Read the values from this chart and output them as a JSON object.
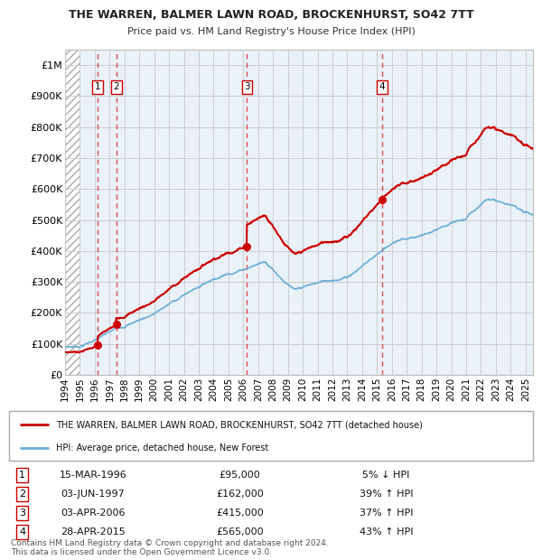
{
  "title1": "THE WARREN, BALMER LAWN ROAD, BROCKENHURST, SO42 7TT",
  "title2": "Price paid vs. HM Land Registry's House Price Index (HPI)",
  "yticks": [
    0,
    100000,
    200000,
    300000,
    400000,
    500000,
    600000,
    700000,
    800000,
    900000,
    1000000
  ],
  "ytick_labels": [
    "£0",
    "£100K",
    "£200K",
    "£300K",
    "£400K",
    "£500K",
    "£600K",
    "£700K",
    "£800K",
    "£900K",
    "£1M"
  ],
  "xlim_start": 1994.0,
  "xlim_end": 2025.5,
  "ylim": [
    0,
    1050000
  ],
  "sale_dates": [
    1996.2,
    1997.45,
    2006.25,
    2015.32
  ],
  "sale_prices": [
    95000,
    162000,
    415000,
    565000
  ],
  "sale_labels": [
    "1",
    "2",
    "3",
    "4"
  ],
  "sale_info": [
    {
      "num": "1",
      "date": "15-MAR-1996",
      "price": "£95,000",
      "pct": "5% ↓ HPI"
    },
    {
      "num": "2",
      "date": "03-JUN-1997",
      "price": "£162,000",
      "pct": "39% ↑ HPI"
    },
    {
      "num": "3",
      "date": "03-APR-2006",
      "price": "£415,000",
      "pct": "37% ↑ HPI"
    },
    {
      "num": "4",
      "date": "28-APR-2015",
      "price": "£565,000",
      "pct": "43% ↑ HPI"
    }
  ],
  "red_line_color": "#cc0000",
  "blue_line_color": "#6baed6",
  "grid_color": "#cccccc",
  "vline_color": "#dd2222",
  "box_color": "#cc0000",
  "legend_label_red": "THE WARREN, BALMER LAWN ROAD, BROCKENHURST, SO42 7TT (detached house)",
  "legend_label_blue": "HPI: Average price, detached house, New Forest",
  "footnote": "Contains HM Land Registry data © Crown copyright and database right 2024.\nThis data is licensed under the Open Government Licence v3.0.",
  "hatch_end": 1995.0
}
